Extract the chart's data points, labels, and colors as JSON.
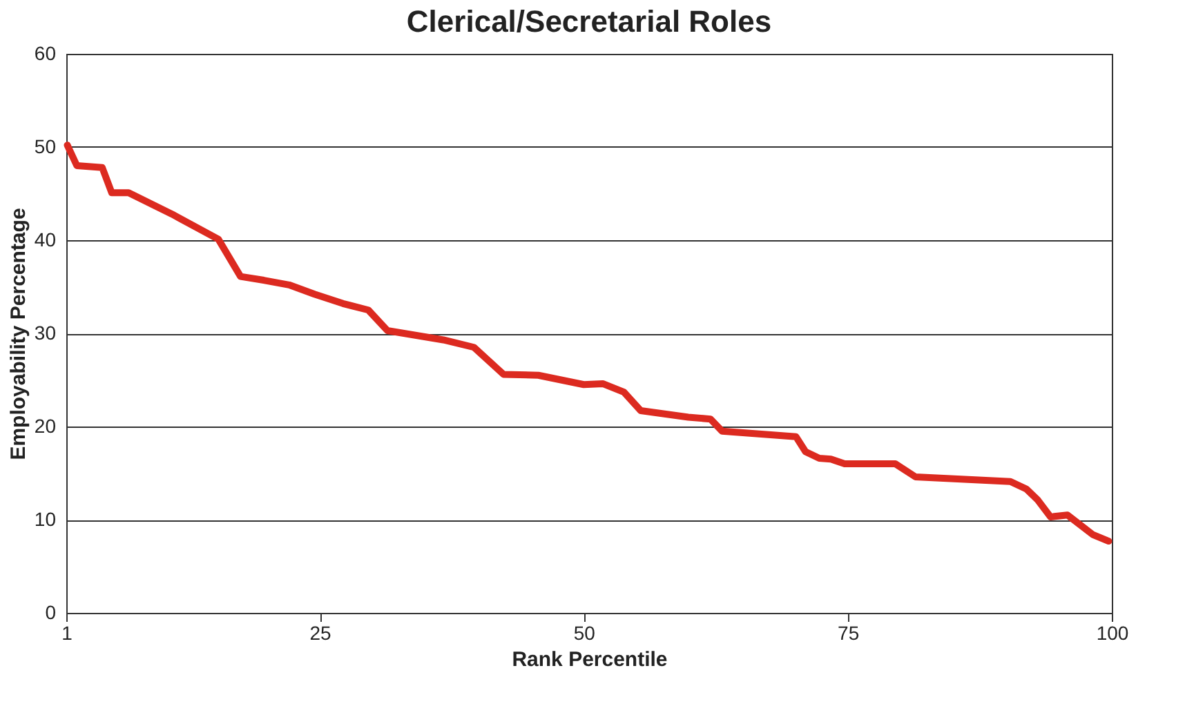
{
  "chart_data": {
    "type": "line",
    "title": "Clerical/Secretarial Roles",
    "xlabel": "Rank Percentile",
    "ylabel": "Employability Percentage",
    "x": [
      1.1,
      2,
      4.4,
      5.3,
      6.9,
      11,
      15.4,
      17.5,
      19.7,
      22.1,
      24.5,
      27.2,
      29.6,
      31.4,
      36.7,
      39.6,
      42.4,
      45.7,
      50,
      51.8,
      53.8,
      55.4,
      59.9,
      62,
      63.1,
      70.1,
      71,
      72.3,
      73.4,
      74.7,
      79.5,
      81.4,
      90.4,
      91.9,
      93,
      94.2,
      95.8,
      98.2,
      99.7
    ],
    "series": [
      {
        "color": "#dc2a20",
        "values": [
          50.2,
          48,
          47.8,
          45.1,
          45.1,
          42.8,
          40.1,
          36.1,
          35.7,
          35.2,
          34.2,
          33.2,
          32.5,
          30.3,
          29.3,
          28.5,
          25.6,
          25.5,
          24.5,
          24.6,
          23.7,
          21.7,
          21,
          20.8,
          19.5,
          18.9,
          17.3,
          16.6,
          16.5,
          16,
          16,
          14.6,
          14.1,
          13.3,
          12.1,
          10.3,
          10.5,
          8.4,
          7.7
        ]
      }
    ],
    "xlim": [
      1,
      100
    ],
    "xticks": [
      1,
      25,
      50,
      75,
      100
    ],
    "ylim": [
      0,
      60
    ],
    "yticks": [
      0,
      10,
      20,
      30,
      40,
      50,
      60
    ],
    "grid": "y",
    "marker": "none",
    "line_style": "solid"
  }
}
